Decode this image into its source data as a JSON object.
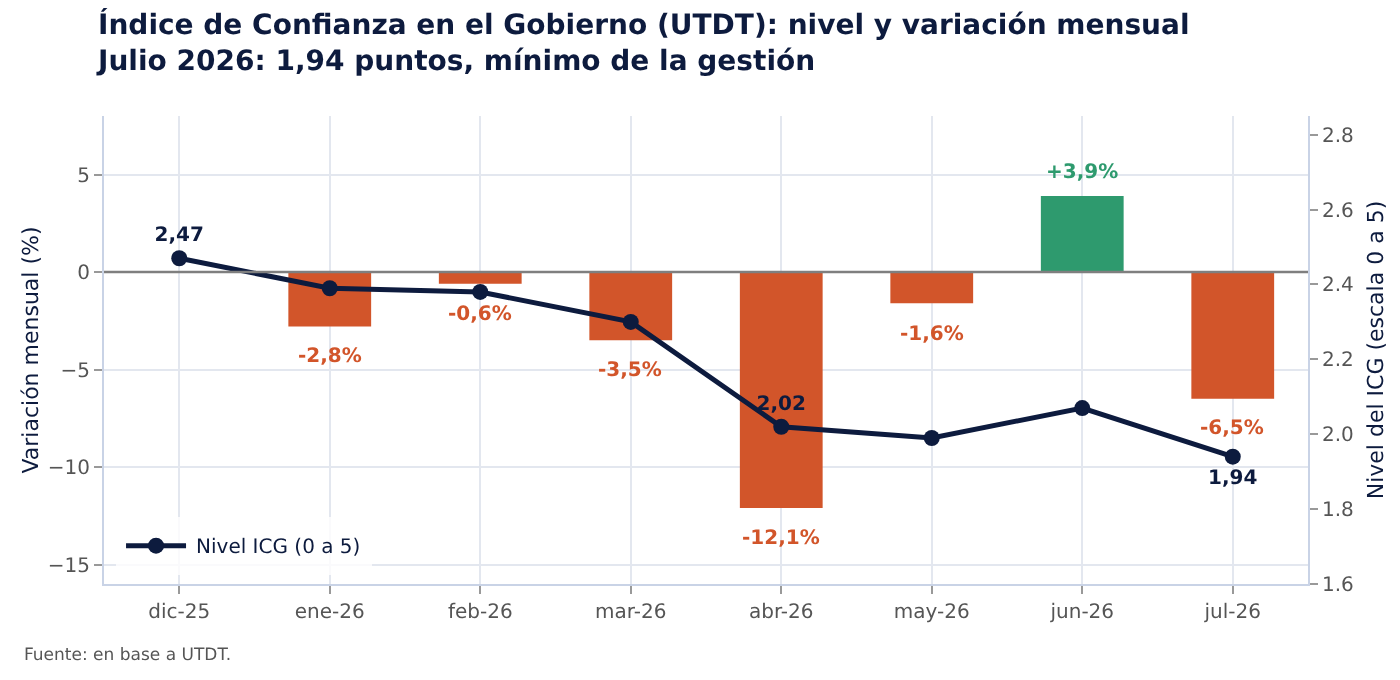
{
  "chart_data": {
    "type": "bar",
    "title": "Índice de Confianza en el Gobierno (UTDT): nivel y variación mensual",
    "subtitle": "Julio 2026: 1,94 puntos, mínimo de la gestión",
    "ylabel": "Variación mensual (%)",
    "y2label": "Nivel del ICG (escala 0 a 5)",
    "categories": [
      "dic-25",
      "ene-26",
      "feb-26",
      "mar-26",
      "abr-26",
      "may-26",
      "jun-26",
      "jul-26"
    ],
    "series": [
      {
        "colors": [
          null,
          "#d2552a",
          "#d2552a",
          "#d2552a",
          "#d2552a",
          "#d2552a",
          "#2e9a6e",
          "#d2552a"
        ],
        "values": [
          null,
          -2.8,
          -0.6,
          -3.5,
          -12.1,
          -1.6,
          3.9,
          -6.5
        ],
        "value_labels": [
          null,
          "-2,8%",
          "-0,6%",
          "-3,5%",
          "-12,1%",
          "-1,6%",
          "+3,9%",
          "-6,5%"
        ]
      },
      {
        "type": "line",
        "name": "Nivel ICG (0 a 5)",
        "color": "#0d1b3e",
        "axis": "y2",
        "values": [
          2.47,
          2.39,
          2.38,
          2.3,
          2.02,
          1.99,
          2.07,
          1.94
        ],
        "value_labels": [
          "2,47",
          null,
          null,
          null,
          "2,02",
          null,
          null,
          "1,94"
        ]
      }
    ],
    "ylim": [
      -16,
      8
    ],
    "yticks": [
      -15,
      -10,
      -5,
      0,
      5
    ],
    "y2lim": [
      1.6,
      2.85
    ],
    "y2ticks": [
      1.6,
      1.8,
      {
        "value": 2,
        "label": "2.0"
      },
      2.2,
      2.4,
      2.6,
      2.8
    ],
    "ref_lines": [
      {
        "axis": "y",
        "value": 0,
        "color": "#7f7f7f"
      }
    ],
    "grid": true,
    "legend": "bottom left",
    "marker": "circle",
    "annotations": [
      "Fuente: en base a UTDT."
    ]
  }
}
